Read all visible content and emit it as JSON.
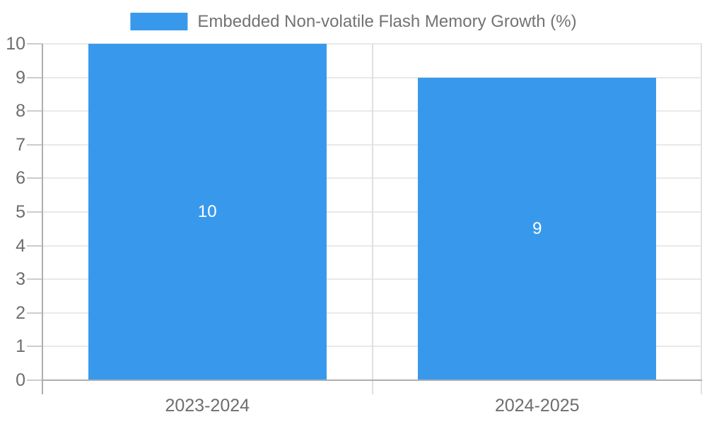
{
  "chart_data": {
    "type": "bar",
    "title": "Embedded Non-volatile Flash Memory Growth (%)",
    "categories": [
      "2023-2024",
      "2024-2025"
    ],
    "series": [
      {
        "name": "Embedded Non-volatile Flash Memory Growth (%)",
        "values": [
          10,
          9
        ],
        "color": "#3899ec"
      }
    ],
    "bar_value_labels": [
      "10",
      "9"
    ],
    "xlabel": "",
    "ylabel": "",
    "ylim": [
      0,
      10
    ],
    "ytick_step": 1,
    "yticks": [
      "0",
      "1",
      "2",
      "3",
      "4",
      "5",
      "6",
      "7",
      "8",
      "9",
      "10"
    ],
    "grid": true,
    "legend_position": "top",
    "background_color": "#ffffff",
    "bar_label_color": "#ffffff",
    "axis_text_color": "#6e6e6e"
  }
}
